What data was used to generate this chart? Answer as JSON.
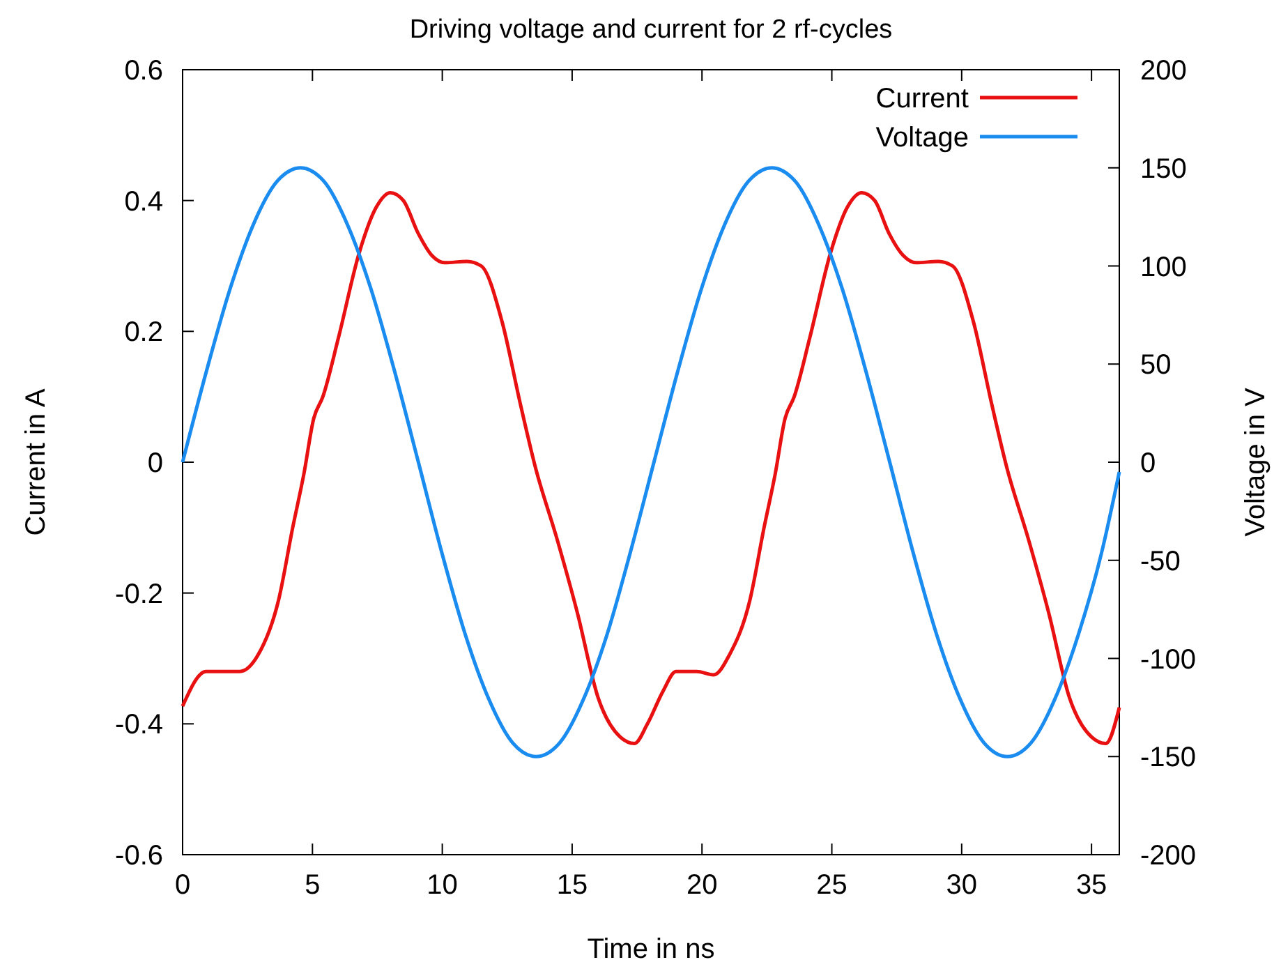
{
  "chart_data": {
    "type": "line",
    "title": "Driving voltage and current for 2 rf-cycles",
    "xlabel": "Time in ns",
    "ylabel": "Current in A",
    "y2label": "Voltage in V",
    "xlim": [
      0,
      36.07
    ],
    "xticks": [
      0,
      5,
      10,
      15,
      20,
      25,
      30,
      35
    ],
    "ylim": [
      -0.6,
      0.6
    ],
    "yticks": [
      -0.6,
      -0.4,
      -0.2,
      0,
      0.2,
      0.4,
      0.6
    ],
    "y2lim": [
      -200,
      200
    ],
    "y2ticks": [
      -200,
      -150,
      -100,
      -50,
      0,
      50,
      100,
      150,
      200
    ],
    "grid": false,
    "legend": "top right",
    "marker": "none",
    "line_style": "solid",
    "series": [
      {
        "name": "Current",
        "color": "#e81010",
        "x": [
          0,
          0.9,
          1.45,
          2.2,
          2.9,
          3.7,
          4.24,
          4.67,
          5.05,
          5.4,
          6.0,
          6.8,
          7.46,
          8.0,
          8.5,
          9.07,
          9.6,
          10.1,
          10.95,
          11.5,
          12.3,
          13.0,
          13.6,
          14.4,
          15.2,
          16.0,
          16.85,
          17.4,
          17.9,
          18.5,
          19.0,
          19.8,
          20.45,
          21.05,
          21.85,
          22.39,
          22.82,
          23.2,
          23.55,
          24.15,
          24.95,
          25.6,
          26.15,
          26.65,
          27.2,
          27.75,
          28.25,
          29.1,
          29.65,
          30.45,
          31.15,
          31.75,
          32.55,
          33.35,
          34.15,
          35.0,
          35.55,
          36.07
        ],
        "values": [
          -0.373,
          -0.32,
          -0.32,
          -0.32,
          -0.295,
          -0.21,
          -0.1,
          -0.018,
          0.067,
          0.1,
          0.19,
          0.32,
          0.39,
          0.412,
          0.4,
          0.35,
          0.316,
          0.305,
          0.307,
          0.3,
          0.215,
          0.09,
          -0.01,
          -0.115,
          -0.23,
          -0.36,
          -0.42,
          -0.43,
          -0.4,
          -0.35,
          -0.32,
          -0.32,
          -0.325,
          -0.295,
          -0.21,
          -0.1,
          -0.018,
          0.067,
          0.1,
          0.19,
          0.32,
          0.39,
          0.412,
          0.4,
          0.35,
          0.316,
          0.305,
          0.307,
          0.3,
          0.215,
          0.09,
          -0.01,
          -0.115,
          -0.23,
          -0.36,
          -0.42,
          -0.43,
          -0.375
        ]
      },
      {
        "name": "Voltage",
        "color": "#1a8cf0",
        "axis": "y2",
        "x": [
          0,
          0.91,
          1.82,
          2.72,
          3.63,
          4.54,
          5.45,
          6.35,
          7.26,
          8.17,
          9.08,
          9.98,
          10.89,
          11.8,
          12.71,
          13.61,
          14.52,
          15.43,
          16.34,
          17.24,
          18.15,
          19.06,
          19.97,
          20.87,
          21.78,
          22.69,
          23.6,
          24.5,
          25.41,
          26.32,
          27.23,
          28.13,
          29.04,
          29.95,
          30.86,
          31.76,
          32.67,
          33.58,
          34.49,
          35.39,
          36.07
        ],
        "values": [
          0,
          46,
          88,
          121,
          143,
          150,
          143,
          121,
          88,
          46,
          0,
          -46,
          -88,
          -121,
          -143,
          -150,
          -143,
          -121,
          -88,
          -46,
          0,
          46,
          88,
          121,
          143,
          150,
          143,
          121,
          88,
          46,
          0,
          -46,
          -88,
          -121,
          -143,
          -150,
          -143,
          -121,
          -88,
          -46,
          -5
        ]
      }
    ]
  }
}
